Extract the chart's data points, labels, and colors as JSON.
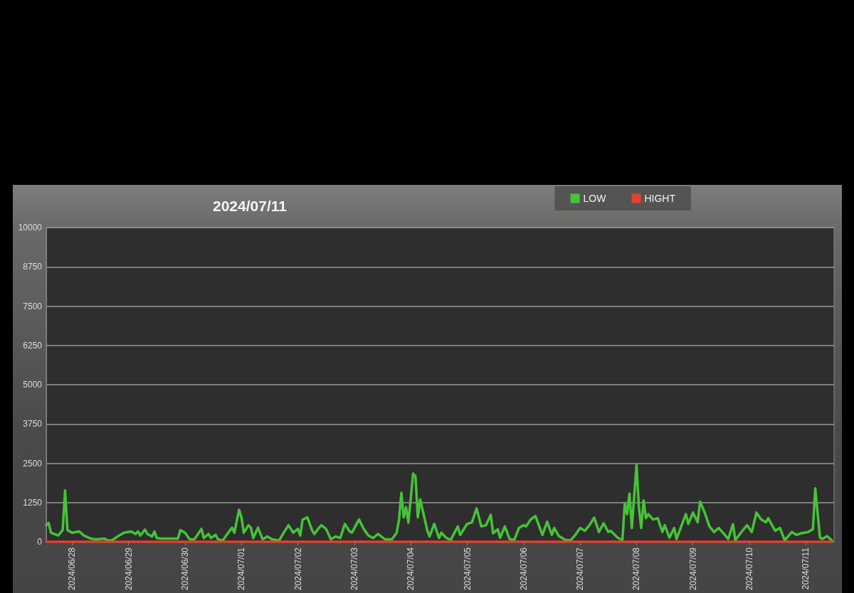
{
  "chart_data": {
    "type": "line",
    "title": "2024/07/11",
    "x": [
      "2024-06-27T13:00",
      "2024-06-27T14:00",
      "2024-06-27T15:00",
      "2024-06-27T18:00",
      "2024-06-27T20:00",
      "2024-06-27T21:00",
      "2024-06-27T22:00",
      "2024-06-28T00:00",
      "2024-06-28T03:00",
      "2024-06-28T05:00",
      "2024-06-28T08:00",
      "2024-06-28T10:00",
      "2024-06-28T14:00",
      "2024-06-28T15:00",
      "2024-06-28T17:00",
      "2024-06-28T20:00",
      "2024-06-28T22:00",
      "2024-06-29T01:00",
      "2024-06-29T03:00",
      "2024-06-29T04:00",
      "2024-06-29T05:00",
      "2024-06-29T07:00",
      "2024-06-29T08:00",
      "2024-06-29T10:00",
      "2024-06-29T11:00",
      "2024-06-29T12:00",
      "2024-06-29T14:00",
      "2024-06-29T18:00",
      "2024-06-29T21:00",
      "2024-06-29T22:00",
      "2024-06-30T00:00",
      "2024-06-30T02:00",
      "2024-06-30T04:00",
      "2024-06-30T07:00",
      "2024-06-30T08:00",
      "2024-06-30T10:00",
      "2024-06-30T11:00",
      "2024-06-30T13:00",
      "2024-06-30T14:00",
      "2024-06-30T16:00",
      "2024-06-30T18:00",
      "2024-06-30T20:00",
      "2024-06-30T21:00",
      "2024-06-30T23:00",
      "2024-07-01T00:00",
      "2024-07-01T01:00",
      "2024-07-01T03:00",
      "2024-07-01T04:00",
      "2024-07-01T05:00",
      "2024-07-01T07:00",
      "2024-07-01T09:00",
      "2024-07-01T11:00",
      "2024-07-01T13:00",
      "2024-07-01T16:00",
      "2024-07-01T18:00",
      "2024-07-01T20:00",
      "2024-07-01T22:00",
      "2024-07-02T00:00",
      "2024-07-02T01:00",
      "2024-07-02T02:00",
      "2024-07-02T04:00",
      "2024-07-02T06:00",
      "2024-07-02T07:00",
      "2024-07-02T09:00",
      "2024-07-02T10:00",
      "2024-07-02T12:00",
      "2024-07-02T14:00",
      "2024-07-02T16:00",
      "2024-07-02T18:00",
      "2024-07-02T20:00",
      "2024-07-02T22:00",
      "2024-07-02T23:00",
      "2024-07-03T02:00",
      "2024-07-03T04:00",
      "2024-07-03T06:00",
      "2024-07-03T08:00",
      "2024-07-03T10:00",
      "2024-07-03T13:00",
      "2024-07-03T16:00",
      "2024-07-03T18:00",
      "2024-07-03T19:00",
      "2024-07-03T20:00",
      "2024-07-03T21:00",
      "2024-07-03T22:00",
      "2024-07-03T23:00",
      "2024-07-04T01:00",
      "2024-07-04T02:00",
      "2024-07-04T03:00",
      "2024-07-04T04:00",
      "2024-07-04T05:00",
      "2024-07-04T07:00",
      "2024-07-04T08:00",
      "2024-07-04T10:00",
      "2024-07-04T12:00",
      "2024-07-04T13:00",
      "2024-07-04T15:00",
      "2024-07-04T17:00",
      "2024-07-04T20:00",
      "2024-07-04T21:00",
      "2024-07-05T00:00",
      "2024-07-05T02:00",
      "2024-07-05T04:00",
      "2024-07-05T06:00",
      "2024-07-05T08:00",
      "2024-07-05T10:00",
      "2024-07-05T11:00",
      "2024-07-05T13:00",
      "2024-07-05T14:00",
      "2024-07-05T16:00",
      "2024-07-05T18:00",
      "2024-07-05T20:00",
      "2024-07-05T22:00",
      "2024-07-06T00:00",
      "2024-07-06T01:00",
      "2024-07-06T03:00",
      "2024-07-06T05:00",
      "2024-07-06T06:00",
      "2024-07-06T08:00",
      "2024-07-06T10:00",
      "2024-07-06T12:00",
      "2024-07-06T13:00",
      "2024-07-06T15:00",
      "2024-07-06T18:00",
      "2024-07-06T20:00",
      "2024-07-06T22:00",
      "2024-07-07T00:00",
      "2024-07-07T02:00",
      "2024-07-07T04:00",
      "2024-07-07T06:00",
      "2024-07-07T08:00",
      "2024-07-07T10:00",
      "2024-07-07T12:00",
      "2024-07-07T13:00",
      "2024-07-07T16:00",
      "2024-07-07T18:00",
      "2024-07-07T19:00",
      "2024-07-07T20:00",
      "2024-07-07T21:00",
      "2024-07-07T22:00",
      "2024-07-08T00:00",
      "2024-07-08T01:00",
      "2024-07-08T02:00",
      "2024-07-08T03:00",
      "2024-07-08T04:00",
      "2024-07-08T05:00",
      "2024-07-08T07:00",
      "2024-07-08T09:00",
      "2024-07-08T11:00",
      "2024-07-08T12:00",
      "2024-07-08T14:00",
      "2024-07-08T16:00",
      "2024-07-08T17:00",
      "2024-07-08T19:00",
      "2024-07-08T21:00",
      "2024-07-08T22:00",
      "2024-07-09T00:00",
      "2024-07-09T02:00",
      "2024-07-09T03:00",
      "2024-07-09T05:00",
      "2024-07-09T07:00",
      "2024-07-09T09:00",
      "2024-07-09T11:00",
      "2024-07-09T13:00",
      "2024-07-09T15:00",
      "2024-07-09T17:00",
      "2024-07-09T18:00",
      "2024-07-09T21:00",
      "2024-07-09T23:00",
      "2024-07-10T01:00",
      "2024-07-10T03:00",
      "2024-07-10T05:00",
      "2024-07-10T07:00",
      "2024-07-10T08:00",
      "2024-07-10T11:00",
      "2024-07-10T13:00",
      "2024-07-10T15:00",
      "2024-07-10T18:00",
      "2024-07-10T20:00",
      "2024-07-10T22:00",
      "2024-07-11T01:00",
      "2024-07-11T03:00",
      "2024-07-11T04:00",
      "2024-07-11T06:00",
      "2024-07-11T07:00",
      "2024-07-11T09:00",
      "2024-07-11T11:00"
    ],
    "series": [
      {
        "name": "LOW",
        "color": "#45c437",
        "values": [
          530,
          600,
          290,
          200,
          370,
          1640,
          370,
          290,
          330,
          200,
          100,
          80,
          100,
          40,
          50,
          200,
          290,
          330,
          250,
          330,
          200,
          390,
          250,
          170,
          330,
          120,
          100,
          100,
          100,
          370,
          290,
          80,
          80,
          410,
          120,
          250,
          120,
          220,
          80,
          40,
          250,
          450,
          290,
          1020,
          780,
          290,
          530,
          450,
          120,
          450,
          80,
          170,
          80,
          40,
          290,
          530,
          290,
          410,
          200,
          700,
          780,
          370,
          250,
          450,
          530,
          410,
          80,
          170,
          120,
          570,
          330,
          290,
          710,
          410,
          200,
          120,
          250,
          80,
          80,
          290,
          700,
          1560,
          780,
          1100,
          610,
          2170,
          2090,
          780,
          1350,
          1020,
          370,
          170,
          570,
          120,
          290,
          130,
          60,
          490,
          220,
          570,
          620,
          1060,
          490,
          530,
          860,
          270,
          400,
          130,
          490,
          90,
          60,
          440,
          530,
          490,
          710,
          820,
          620,
          220,
          640,
          220,
          440,
          180,
          50,
          50,
          220,
          440,
          350,
          530,
          770,
          310,
          590,
          310,
          350,
          130,
          50,
          1230,
          880,
          1540,
          440,
          2450,
          1100,
          440,
          1320,
          750,
          880,
          710,
          750,
          310,
          530,
          130,
          440,
          90,
          490,
          880,
          570,
          930,
          620,
          1280,
          930,
          490,
          310,
          440,
          270,
          90,
          560,
          50,
          350,
          530,
          310,
          930,
          710,
          620,
          750,
          350,
          440,
          50,
          310,
          220,
          270,
          310,
          400,
          1700,
          130,
          90,
          180,
          50
        ]
      },
      {
        "name": "HIGHT",
        "color": "#e8402f",
        "x": [
          "2024-06-27T13:00",
          "2024-07-11T11:00"
        ],
        "values": [
          0,
          0
        ]
      }
    ],
    "xlim": [
      "2024-06-27T13:00",
      "2024-07-11T12:00"
    ],
    "xticks": [
      {
        "value": "2024-06-28",
        "label": "2024/06/28"
      },
      {
        "value": "2024-06-29",
        "label": "2024/06/29"
      },
      {
        "value": "2024-06-30",
        "label": "2024/06/30"
      },
      {
        "value": "2024-07-01",
        "label": "2024/07/01"
      },
      {
        "value": "2024-07-02",
        "label": "2024/07/02"
      },
      {
        "value": "2024-07-03",
        "label": "2024/07/03"
      },
      {
        "value": "2024-07-04",
        "label": "2024/07/04"
      },
      {
        "value": "2024-07-05",
        "label": "2024/07/05"
      },
      {
        "value": "2024-07-06",
        "label": "2024/07/06"
      },
      {
        "value": "2024-07-07",
        "label": "2024/07/07"
      },
      {
        "value": "2024-07-08",
        "label": "2024/07/08"
      },
      {
        "value": "2024-07-09",
        "label": "2024/07/09"
      },
      {
        "value": "2024-07-10",
        "label": "2024/07/10"
      },
      {
        "value": "2024-07-11",
        "label": "2024/07/11"
      }
    ],
    "ylim": [
      0,
      10000
    ],
    "yticks": [
      0,
      1250,
      2500,
      3750,
      5000,
      6250,
      7500,
      8750,
      10000
    ],
    "grid": "y",
    "legend": "top right",
    "marker": "none"
  }
}
